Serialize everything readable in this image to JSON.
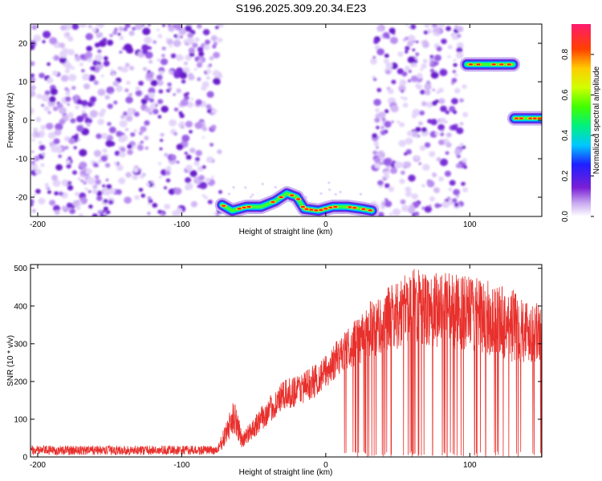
{
  "title": "S196.2025.309.20.34.E23",
  "chart_data": [
    {
      "type": "heatmap",
      "name": "spectrogram",
      "xlabel": "Height of straight line (km)",
      "ylabel": "Frequency (Hz)",
      "xlim": [
        -205,
        150
      ],
      "ylim": [
        -25,
        25
      ],
      "xticks": [
        -200,
        -100,
        0,
        100
      ],
      "yticks": [
        20,
        10,
        0,
        -10,
        -20
      ],
      "colorbar": {
        "label": "Normalized spectral amplitude",
        "range": [
          0,
          0.95
        ],
        "ticks": [
          0.0,
          0.2,
          0.4,
          0.6,
          0.8
        ]
      },
      "noise_regions": [
        [
          -205,
          -73
        ],
        [
          33,
          97
        ]
      ],
      "blank_regions": [
        [
          -73,
          33
        ],
        [
          98,
          150
        ]
      ],
      "signal_track": [
        {
          "x": -72,
          "y": -22
        },
        {
          "x": -65,
          "y": -23.5
        },
        {
          "x": -55,
          "y": -22.5
        },
        {
          "x": -45,
          "y": -22.5
        },
        {
          "x": -35,
          "y": -21
        },
        {
          "x": -27,
          "y": -19
        },
        {
          "x": -20,
          "y": -20
        },
        {
          "x": -15,
          "y": -23
        },
        {
          "x": -5,
          "y": -23.5
        },
        {
          "x": 5,
          "y": -22.5
        },
        {
          "x": 15,
          "y": -22.5
        },
        {
          "x": 25,
          "y": -23
        },
        {
          "x": 32,
          "y": -23.5
        }
      ],
      "high_segment": {
        "x_start": 98,
        "x_end": 130,
        "y": 14.5
      },
      "right_segment": {
        "x_start": 131,
        "x_end": 150,
        "y": 0.5
      }
    },
    {
      "type": "line",
      "name": "snr",
      "xlabel": "Height of straight line (km)",
      "ylabel": "SNR (10 * v/v)",
      "xlim": [
        -205,
        150
      ],
      "ylim": [
        0,
        510
      ],
      "xticks": [
        -200,
        -100,
        0,
        100
      ],
      "yticks": [
        0,
        100,
        200,
        300,
        400,
        500
      ],
      "color": "#e8302c",
      "envelope": [
        {
          "x": -205,
          "base": 5,
          "amp": 25
        },
        {
          "x": -75,
          "base": 5,
          "amp": 25
        },
        {
          "x": -63,
          "base": 60,
          "amp": 100
        },
        {
          "x": -58,
          "base": 20,
          "amp": 40
        },
        {
          "x": -50,
          "base": 50,
          "amp": 60
        },
        {
          "x": -30,
          "base": 120,
          "amp": 80
        },
        {
          "x": -10,
          "base": 150,
          "amp": 90
        },
        {
          "x": 0,
          "base": 180,
          "amp": 90
        },
        {
          "x": 10,
          "base": 220,
          "amp": 100
        },
        {
          "x": 30,
          "base": 260,
          "amp": 150
        },
        {
          "x": 60,
          "base": 300,
          "amp": 200
        },
        {
          "x": 100,
          "base": 280,
          "amp": 200
        },
        {
          "x": 130,
          "base": 250,
          "amp": 200
        },
        {
          "x": 150,
          "base": 250,
          "amp": 150
        }
      ],
      "dropout_start": 12
    }
  ]
}
